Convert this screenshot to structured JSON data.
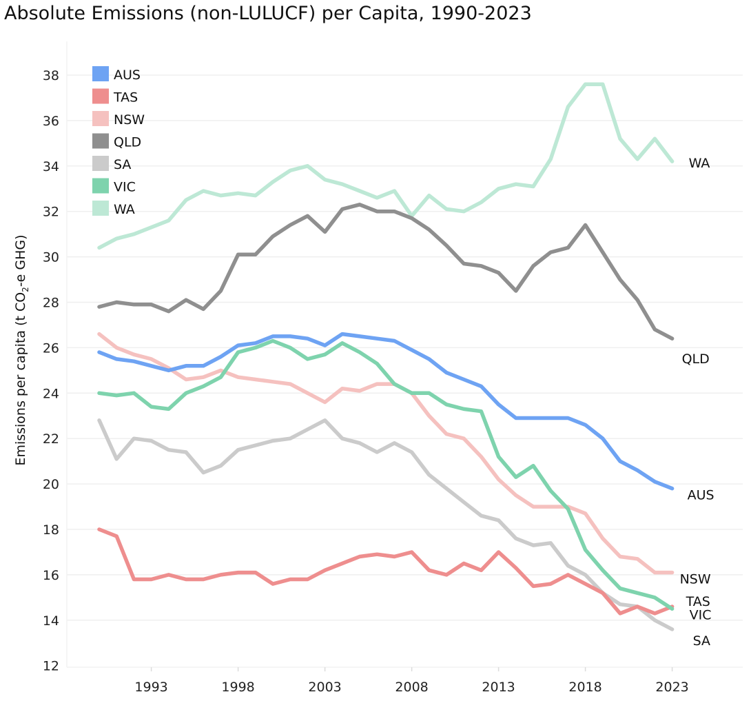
{
  "chart_data": {
    "type": "line",
    "title": "Absolute Emissions (non-LULUCF) per Capita, 1990-2023",
    "ylabel_prefix": "Emissions per capita (t CO",
    "ylabel_sub": "2",
    "ylabel_suffix": "-e GHG)",
    "ylim": [
      12,
      39
    ],
    "yticks": [
      12,
      14,
      16,
      18,
      20,
      22,
      24,
      26,
      28,
      30,
      32,
      34,
      36,
      38
    ],
    "xlim": [
      1989,
      2027
    ],
    "xticks": [
      1993,
      1998,
      2003,
      2008,
      2013,
      2018,
      2023
    ],
    "grid": true,
    "legend_position": "top-left",
    "x": [
      1990,
      1991,
      1992,
      1993,
      1994,
      1995,
      1996,
      1997,
      1998,
      1999,
      2000,
      2001,
      2002,
      2003,
      2004,
      2005,
      2006,
      2007,
      2008,
      2009,
      2010,
      2011,
      2012,
      2013,
      2014,
      2015,
      2016,
      2017,
      2018,
      2019,
      2020,
      2021,
      2022,
      2023
    ],
    "series": [
      {
        "name": "AUS",
        "color": "#6ea3f3",
        "end_label": "AUS",
        "values": [
          25.8,
          25.5,
          25.4,
          25.2,
          25.0,
          25.2,
          25.2,
          25.6,
          26.1,
          26.2,
          26.5,
          26.5,
          26.4,
          26.1,
          26.6,
          26.5,
          26.4,
          26.3,
          25.9,
          25.5,
          24.9,
          24.6,
          24.3,
          23.5,
          22.9,
          22.9,
          22.9,
          22.9,
          22.6,
          22.0,
          21.0,
          20.6,
          20.1,
          19.8
        ]
      },
      {
        "name": "TAS",
        "color": "#ee8e8e",
        "end_label": "TAS",
        "values": [
          18.0,
          17.7,
          15.8,
          15.8,
          16.0,
          15.8,
          15.8,
          16.0,
          16.1,
          16.1,
          15.6,
          15.8,
          15.8,
          16.2,
          16.5,
          16.8,
          16.9,
          16.8,
          17.0,
          16.2,
          16.0,
          16.5,
          16.2,
          17.0,
          16.3,
          15.5,
          15.6,
          16.0,
          15.6,
          15.2,
          14.3,
          14.6,
          14.3,
          14.6
        ]
      },
      {
        "name": "NSW",
        "color": "#f5c1bf",
        "end_label": "NSW",
        "values": [
          26.6,
          26.0,
          25.7,
          25.5,
          25.1,
          24.6,
          24.7,
          25.0,
          24.7,
          24.6,
          24.5,
          24.4,
          24.0,
          23.6,
          24.2,
          24.1,
          24.4,
          24.4,
          24.0,
          23.0,
          22.2,
          22.0,
          21.2,
          20.2,
          19.5,
          19.0,
          19.0,
          19.0,
          18.7,
          17.6,
          16.8,
          16.7,
          16.1,
          16.1
        ]
      },
      {
        "name": "QLD",
        "color": "#8f8f8f",
        "end_label": "QLD",
        "values": [
          27.8,
          28.0,
          27.9,
          27.9,
          27.6,
          28.1,
          27.7,
          28.5,
          30.1,
          30.1,
          30.9,
          31.4,
          31.8,
          31.1,
          32.1,
          32.3,
          32.0,
          32.0,
          31.7,
          31.2,
          30.5,
          29.7,
          29.6,
          29.3,
          28.5,
          29.6,
          30.2,
          30.4,
          31.4,
          30.2,
          29.0,
          28.1,
          26.8,
          26.4
        ]
      },
      {
        "name": "SA",
        "color": "#cbcbcb",
        "end_label": "SA",
        "values": [
          22.8,
          21.1,
          22.0,
          21.9,
          21.5,
          21.4,
          20.5,
          20.8,
          21.5,
          21.7,
          21.9,
          22.0,
          22.4,
          22.8,
          22.0,
          21.8,
          21.4,
          21.8,
          21.4,
          20.4,
          19.8,
          19.2,
          18.6,
          18.4,
          17.6,
          17.3,
          17.4,
          16.4,
          16.0,
          15.2,
          14.7,
          14.6,
          14.0,
          13.6
        ]
      },
      {
        "name": "VIC",
        "color": "#7ed3ad",
        "end_label": "VIC",
        "values": [
          24.0,
          23.9,
          24.0,
          23.4,
          23.3,
          24.0,
          24.3,
          24.7,
          25.8,
          26.0,
          26.3,
          26.0,
          25.5,
          25.7,
          26.2,
          25.8,
          25.3,
          24.4,
          24.0,
          24.0,
          23.5,
          23.3,
          23.2,
          21.2,
          20.3,
          20.8,
          19.7,
          18.9,
          17.1,
          16.2,
          15.4,
          15.2,
          15.0,
          14.5
        ]
      },
      {
        "name": "WA",
        "color": "#bde8d5",
        "end_label": "WA",
        "values": [
          30.4,
          30.8,
          31.0,
          31.3,
          31.6,
          32.5,
          32.9,
          32.7,
          32.8,
          32.7,
          33.3,
          33.8,
          34.0,
          33.4,
          33.2,
          32.9,
          32.6,
          32.9,
          31.8,
          32.7,
          32.1,
          32.0,
          32.4,
          33.0,
          33.2,
          33.1,
          34.3,
          36.6,
          37.6,
          37.6,
          35.2,
          34.3,
          35.2,
          34.2
        ]
      }
    ]
  }
}
